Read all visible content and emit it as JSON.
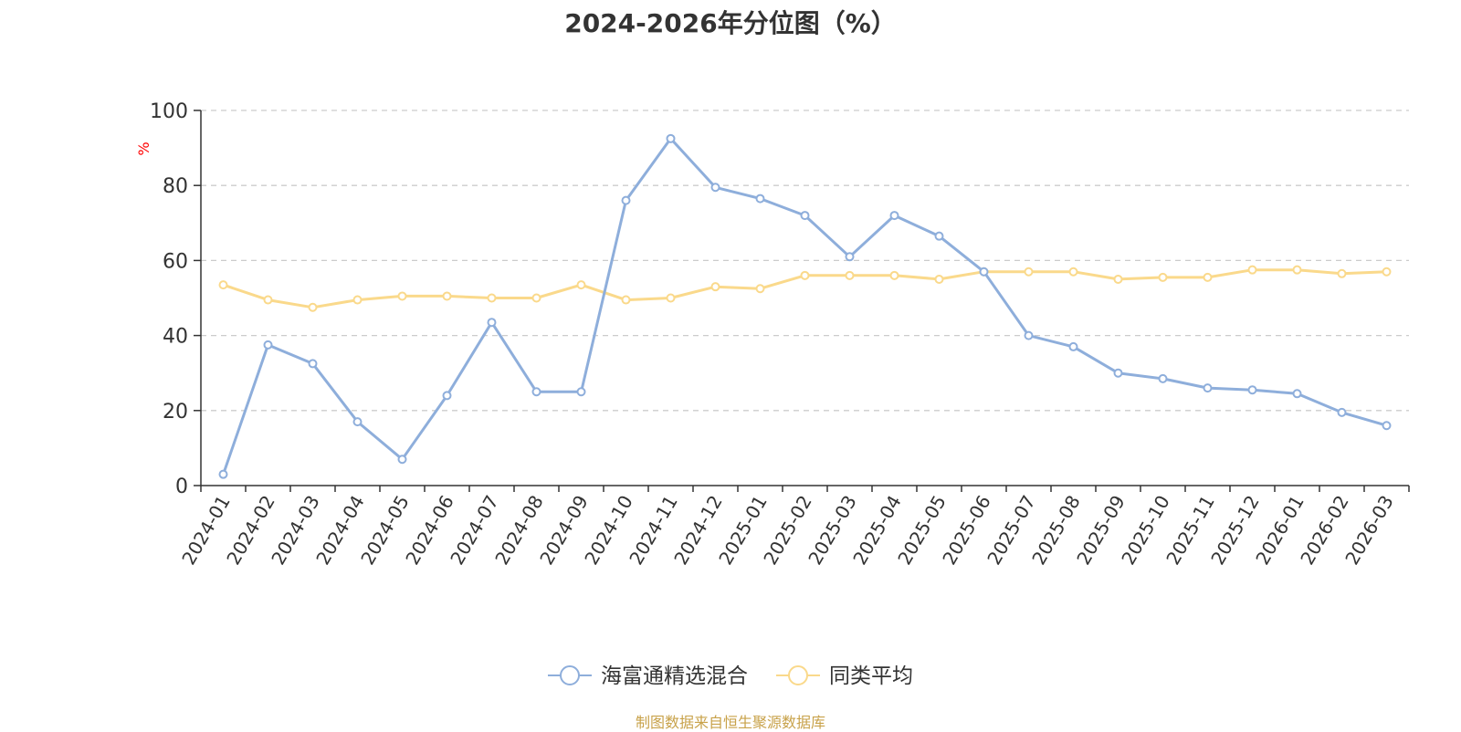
{
  "chart_data": {
    "type": "line",
    "title": "2024-2026年分位图（%）",
    "ylabel": "%",
    "xlabel": "",
    "ylim": [
      0,
      100
    ],
    "yticks": [
      0,
      20,
      40,
      60,
      80,
      100
    ],
    "grid": true,
    "legend_position": "bottom",
    "categories": [
      "2024-01",
      "2024-02",
      "2024-03",
      "2024-04",
      "2024-05",
      "2024-06",
      "2024-07",
      "2024-08",
      "2024-09",
      "2024-10",
      "2024-11",
      "2024-12",
      "2025-01",
      "2025-02",
      "2025-03",
      "2025-04",
      "2025-05",
      "2025-06",
      "2025-07",
      "2025-08",
      "2025-09",
      "2025-10",
      "2025-11",
      "2025-12",
      "2026-01",
      "2026-02",
      "2026-03"
    ],
    "series": [
      {
        "name": "海富通精选混合",
        "color": "#8eaedb",
        "values": [
          3,
          37.5,
          32.5,
          17,
          7,
          24,
          43.5,
          25,
          25,
          76,
          92.5,
          79.5,
          76.5,
          72,
          61,
          72,
          66.5,
          57,
          40,
          37,
          30,
          28.5,
          26,
          25.5,
          24.5,
          19.5,
          16
        ]
      },
      {
        "name": "同类平均",
        "color": "#fad98b",
        "values": [
          53.5,
          49.5,
          47.5,
          49.5,
          50.5,
          50.5,
          50,
          50,
          53.5,
          49.5,
          50,
          53,
          52.5,
          56,
          56,
          56,
          55,
          57,
          57,
          57,
          55,
          55.5,
          55.5,
          57.5,
          57.5,
          56.5,
          57
        ]
      }
    ]
  },
  "source_text": "制图数据来自恒生聚源数据库",
  "axis_color": "#333333",
  "grid_color": "#cccccc",
  "ylabel_color": "#ff0000"
}
